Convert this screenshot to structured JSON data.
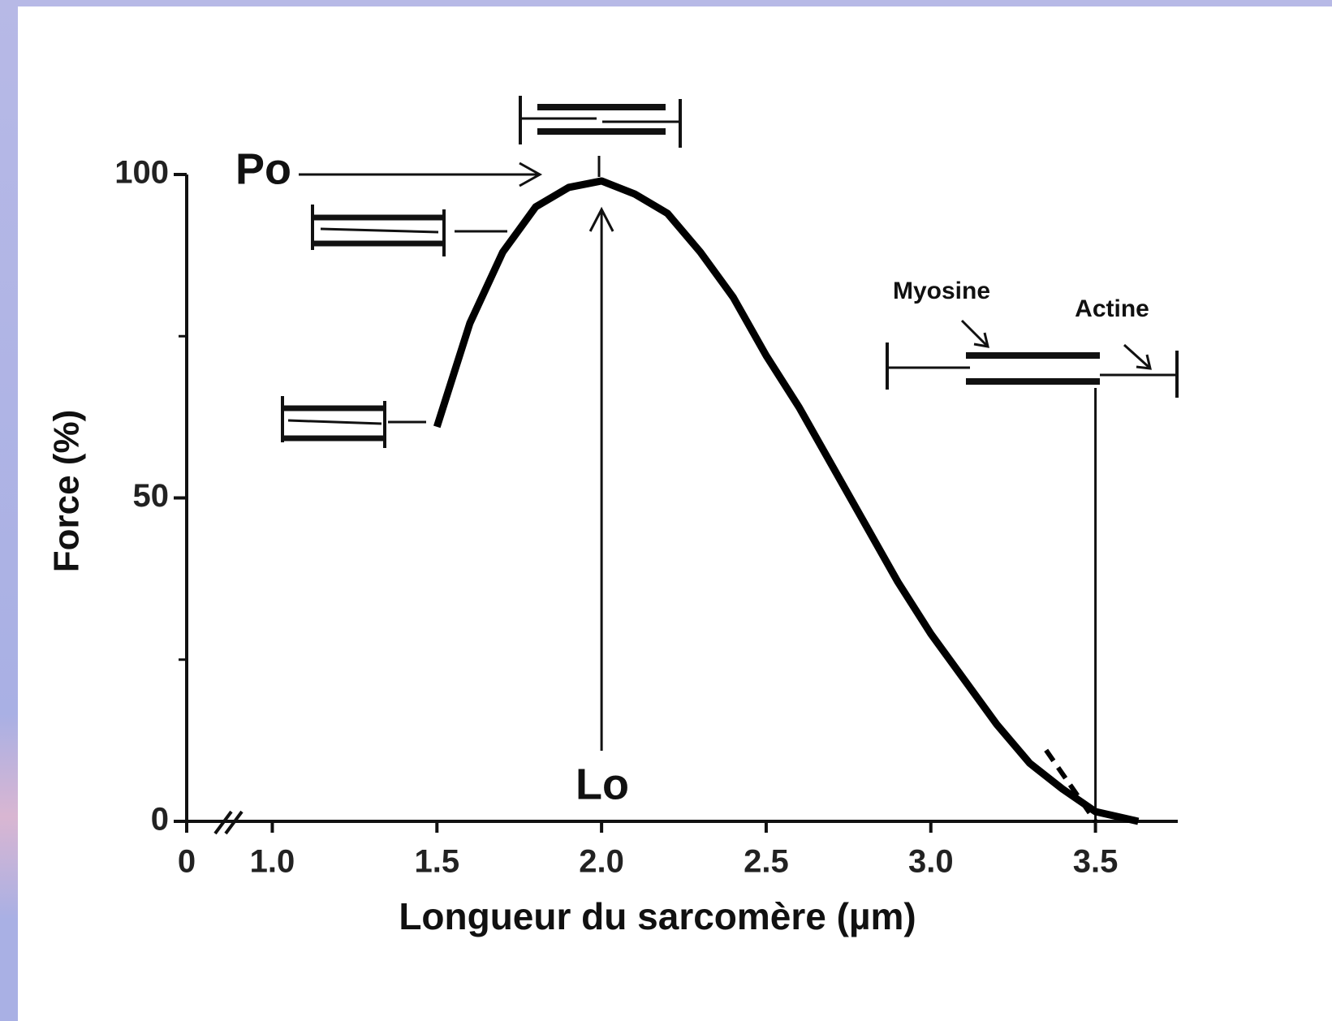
{
  "chart_data": {
    "type": "line",
    "title_y": "Force (%)",
    "title_x": "Longueur du sarcomère (µm)",
    "x": [
      1.5,
      1.6,
      1.7,
      1.8,
      1.9,
      2.0,
      2.1,
      2.2,
      2.3,
      2.4,
      2.5,
      2.6,
      2.7,
      2.8,
      2.9,
      3.0,
      3.1,
      3.2,
      3.3,
      3.4,
      3.5,
      3.63
    ],
    "values": [
      61,
      77,
      88,
      95,
      98,
      99,
      97,
      94,
      88,
      81,
      72,
      64,
      55,
      46,
      37,
      29,
      22,
      15,
      9,
      5,
      1.5,
      0
    ],
    "color": "#000000",
    "dashed_line": {
      "x": [
        3.35,
        3.5
      ],
      "values": [
        11,
        0
      ]
    },
    "xlim": [
      0.74,
      3.75
    ],
    "xticks": [
      {
        "value": 1,
        "label": "1.0"
      },
      1.5,
      {
        "value": 2,
        "label": "2.0"
      },
      2.5,
      {
        "value": 3,
        "label": "3.0"
      },
      3.5
    ],
    "x_origin": 0,
    "ylim": [
      0,
      100
    ],
    "yticks": [
      0,
      50,
      100
    ],
    "y_minor_ticks": [
      25,
      75
    ],
    "annotations": {
      "po": "Po",
      "lo": "Lo",
      "myosine": "Myosine",
      "actine": "Actine"
    }
  }
}
